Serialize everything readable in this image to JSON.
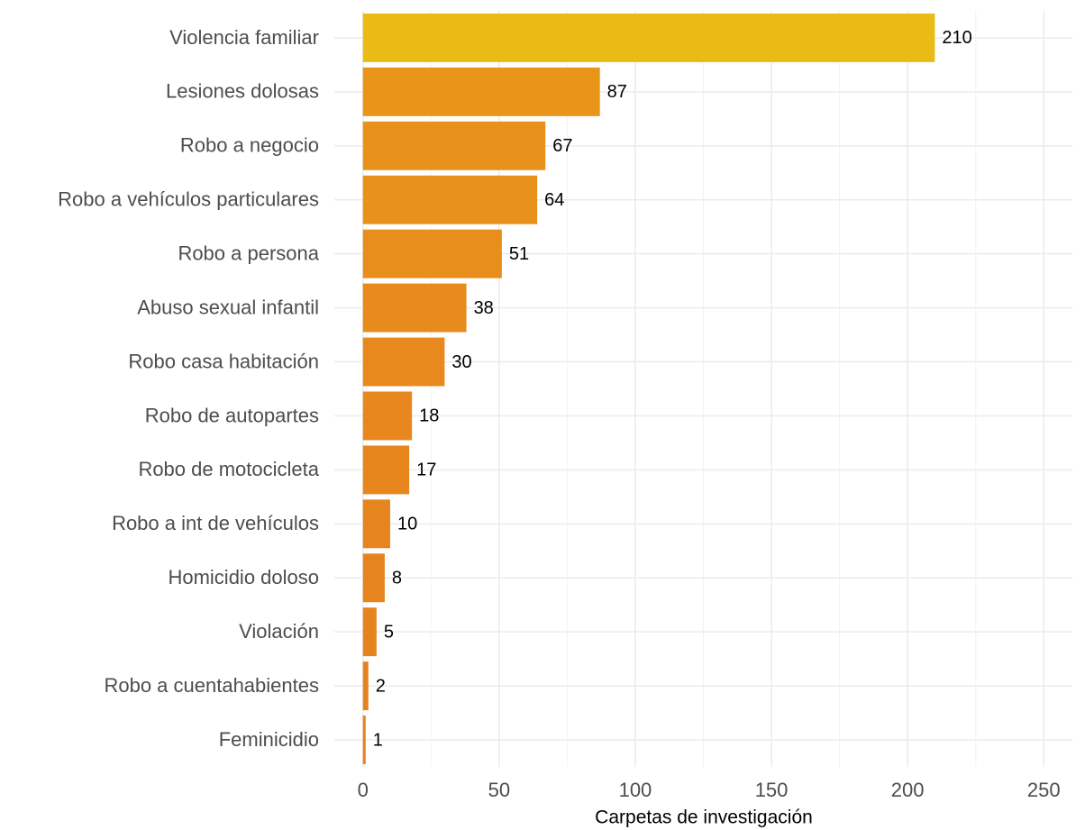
{
  "chart_data": {
    "type": "barh",
    "x_label": "Carpetas de investigación",
    "categories": [
      "Violencia familiar",
      "Lesiones dolosas",
      "Robo a negocio",
      "Robo a vehículos particulares",
      "Robo a persona",
      "Abuso sexual infantil",
      "Robo casa habitación",
      "Robo de autopartes",
      "Robo de motocicleta",
      "Robo a int de vehículos",
      "Homicidio doloso",
      "Violación",
      "Robo a cuentahabientes",
      "Feminicidio"
    ],
    "values": [
      210,
      87,
      67,
      64,
      51,
      38,
      30,
      18,
      17,
      10,
      8,
      5,
      2,
      1
    ],
    "colors": [
      "#ebbb15",
      "#e8951a",
      "#e8921b",
      "#e8911b",
      "#e78e1c",
      "#e78b1c",
      "#e7891d",
      "#e7871d",
      "#e7861d",
      "#e6841e",
      "#e6841e",
      "#e6831e",
      "#e6821e",
      "#e6821e"
    ],
    "xlim": [
      -10.5,
      260.5
    ],
    "xticks": [
      0,
      50,
      100,
      150,
      200,
      250
    ],
    "minor_xticks": [
      25,
      75,
      125,
      175,
      225
    ],
    "grid": true
  }
}
